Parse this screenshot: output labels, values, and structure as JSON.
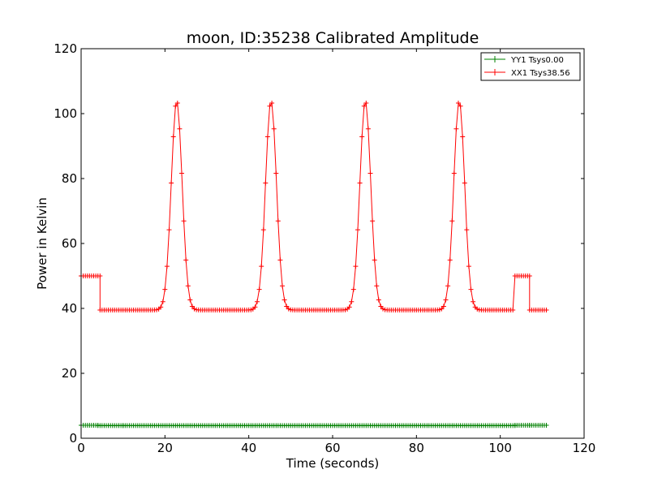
{
  "chart_data": {
    "type": "line",
    "title": "moon, ID:35238 Calibrated Amplitude",
    "xlabel": "Time (seconds)",
    "ylabel": "Power in Kelvin",
    "xlim": [
      0,
      120
    ],
    "ylim": [
      0,
      120
    ],
    "xticks": [
      0,
      20,
      40,
      60,
      80,
      100,
      120
    ],
    "yticks": [
      0,
      20,
      40,
      60,
      80,
      100,
      120
    ],
    "grid": false,
    "legend_position": "top-right",
    "markers": "plus",
    "series": [
      {
        "name": "YY1 Tsys0.00",
        "color": "#008000",
        "sample_spacing": 0.5,
        "segments": [
          {
            "start": 0,
            "end": 4,
            "value": 4.0
          },
          {
            "start": 4,
            "end": 10,
            "value": 3.9
          },
          {
            "start": 10,
            "end": 103.5,
            "value": 3.9
          },
          {
            "start": 103.5,
            "end": 107,
            "value": 4.0
          },
          {
            "start": 107,
            "end": 111,
            "value": 4.0
          }
        ]
      },
      {
        "name": "XX1 Tsys38.56",
        "color": "#ff0000",
        "sample_spacing": 0.5,
        "baseline": 39.5,
        "segments": [
          {
            "start": 0,
            "end": 4.5,
            "value": 50.0
          },
          {
            "start": 4.5,
            "end": 103,
            "value": 39.5
          },
          {
            "start": 103.5,
            "end": 107,
            "value": 50.0
          },
          {
            "start": 107,
            "end": 111,
            "value": 39.5
          }
        ],
        "peaks": [
          {
            "center": 22.8,
            "height": 104,
            "sigma": 1.3
          },
          {
            "center": 45.3,
            "height": 104,
            "sigma": 1.3
          },
          {
            "center": 67.8,
            "height": 104,
            "sigma": 1.3
          },
          {
            "center": 90.2,
            "height": 104,
            "sigma": 1.3
          }
        ]
      }
    ]
  }
}
